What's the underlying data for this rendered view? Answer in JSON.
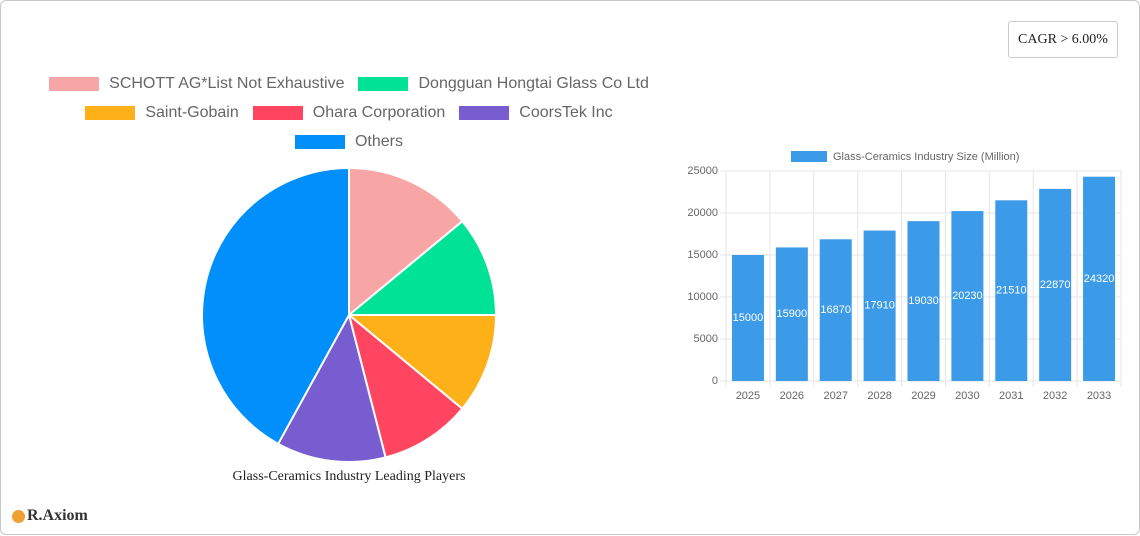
{
  "chart_data": [
    {
      "type": "pie",
      "title": "Glass-Ceramics Industry Leading Players",
      "categories": [
        "SCHOTT AG*List Not Exhaustive",
        "Dongguan Hongtai Glass Co  Ltd",
        "Saint-Gobain",
        "Ohara Corporation",
        "CoorsTek Inc",
        "Others"
      ],
      "values": [
        14,
        11,
        11,
        10,
        12,
        42
      ],
      "colors": [
        "#f8a5a5",
        "#00e396",
        "#feb019",
        "#ff4560",
        "#775dd0",
        "#008ffb"
      ]
    },
    {
      "type": "bar",
      "categories": [
        "2025",
        "2026",
        "2027",
        "2028",
        "2029",
        "2030",
        "2031",
        "2032",
        "2033"
      ],
      "series": [
        {
          "name": "Glass-Ceramics Industry Size (Million)",
          "color": "#3b9be9",
          "values": [
            15000,
            15900,
            16870,
            17910,
            19030,
            20230,
            21510,
            22870,
            24320
          ]
        }
      ],
      "ylim": [
        0,
        25000
      ],
      "yticks": [
        0,
        5000,
        10000,
        15000,
        20000,
        25000
      ],
      "grid": true
    }
  ],
  "cagr": "CAGR > 6.00%",
  "logo": "R.Axiom"
}
